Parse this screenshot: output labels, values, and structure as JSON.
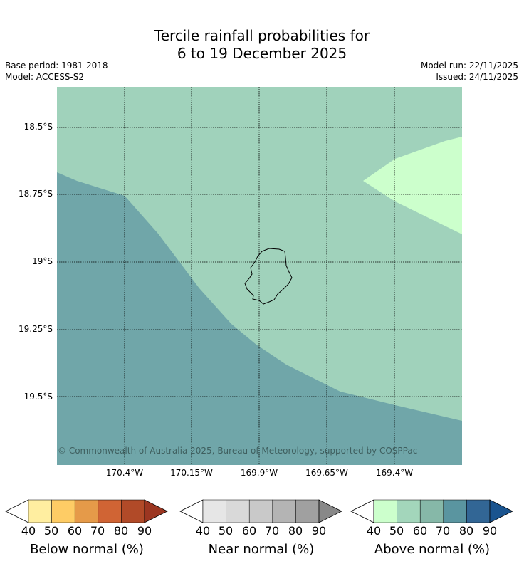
{
  "title_line1": "Tercile rainfall probabilities for",
  "title_line2": "6 to 19 December 2025",
  "base_period": "Base period: 1981-2018",
  "model": "Model: ACCESS-S2",
  "model_run": "Model run: 22/11/2025",
  "issued": "Issued: 24/11/2025",
  "map": {
    "lat_labels": [
      "18.5°S",
      "18.75°S",
      "19°S",
      "19.25°S",
      "19.5°S"
    ],
    "lon_labels": [
      "170.4°W",
      "170.15°W",
      "169.9°W",
      "169.65°W",
      "169.4°W"
    ],
    "colors": {
      "above_50": "#a0d2bb",
      "above_40": "#ccffcc",
      "above_70": "#70a6a9",
      "coast": "#000000"
    },
    "copyright": "© Commonwealth of Australia 2025, Bureau of Meteorology, supported by COSPPac"
  },
  "legend": {
    "ticks": [
      "40",
      "50",
      "60",
      "70",
      "80",
      "90"
    ],
    "below": {
      "label": "Below normal (%)",
      "colors": [
        "#ffffff",
        "#ffeea0",
        "#fecc65",
        "#e59a49",
        "#d06434",
        "#b14a28",
        "#9c3621"
      ]
    },
    "near": {
      "label": "Near normal (%)",
      "colors": [
        "#ffffff",
        "#e6e6e6",
        "#d9d9d9",
        "#c9c9c9",
        "#b4b4b4",
        "#a0a0a0",
        "#888888"
      ]
    },
    "above": {
      "label": "Above normal (%)",
      "colors": [
        "#ffffff",
        "#ccffcc",
        "#a3d6bb",
        "#86b8a8",
        "#5a95a0",
        "#326695",
        "#1a548f"
      ]
    }
  }
}
